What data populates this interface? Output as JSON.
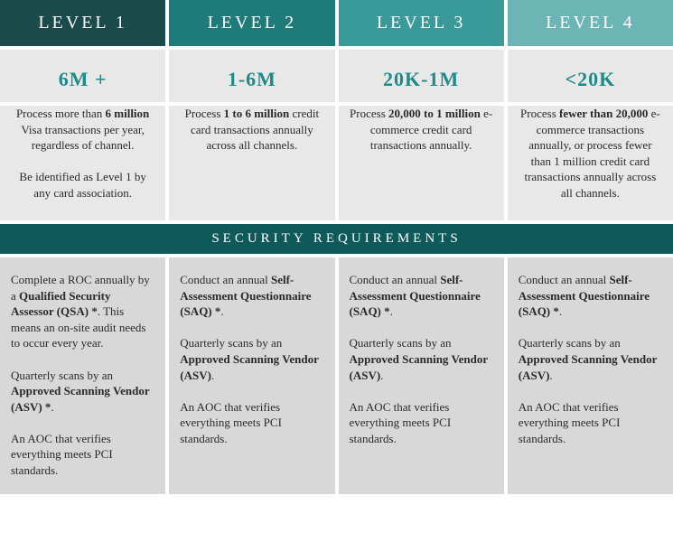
{
  "colors": {
    "header_bgs": [
      "#1a4a4a",
      "#1f7a7a",
      "#3a9a9a",
      "#6bb5b5"
    ],
    "row_light": "#e8e8e8",
    "row_mid": "#d8d8d8",
    "banner_bg": "#0e5a5a",
    "stat_text": "#1f8a8a",
    "body_text": "#2a2a2a"
  },
  "levels": [
    {
      "title": "LEVEL 1",
      "stat": "6M +",
      "desc_html": "Process more than <b>6 million</b> Visa transactions per year, regardless of channel.<br><br>Be identified as Level 1 by any card association.",
      "req_html": "Complete a ROC annually by a <b>Qualified Security Assessor (QSA) *</b>. This means an on-site audit needs to occur every year.<br><br>Quarterly scans by an <b>Approved Scanning Vendor (ASV) *</b>.<br><br>An AOC that verifies everything meets PCI standards."
    },
    {
      "title": "LEVEL 2",
      "stat": "1-6M",
      "desc_html": "Process <b>1 to 6 million</b> credit card transactions annually across all channels.",
      "req_html": "Conduct an annual <b>Self-Assessment Questionnaire (SAQ) *</b>.<br><br>Quarterly scans by an <b>Approved Scanning Vendor (ASV)</b>.<br><br>An AOC that verifies everything meets PCI standards."
    },
    {
      "title": "LEVEL 3",
      "stat": "20K-1M",
      "desc_html": "Process <b>20,000 to 1 million</b> e-commerce credit card transactions annually.",
      "req_html": "Conduct an annual <b>Self-Assessment Questionnaire (SAQ) *</b>.<br><br>Quarterly scans by an <b>Approved Scanning Vendor (ASV)</b>.<br><br>An AOC that verifies everything meets PCI standards."
    },
    {
      "title": "LEVEL 4",
      "stat": "<20K",
      "desc_html": "Process <b>fewer than 20,000</b> e-commerce transactions annually, or process fewer than 1 million credit card transactions annually across all channels.",
      "req_html": "Conduct an annual <b>Self-Assessment Questionnaire (SAQ) *</b>.<br><br>Quarterly scans by an <b>Approved Scanning Vendor (ASV)</b>.<br><br>An AOC that verifies everything meets PCI standards."
    }
  ],
  "security_banner": "SECURITY REQUIREMENTS"
}
